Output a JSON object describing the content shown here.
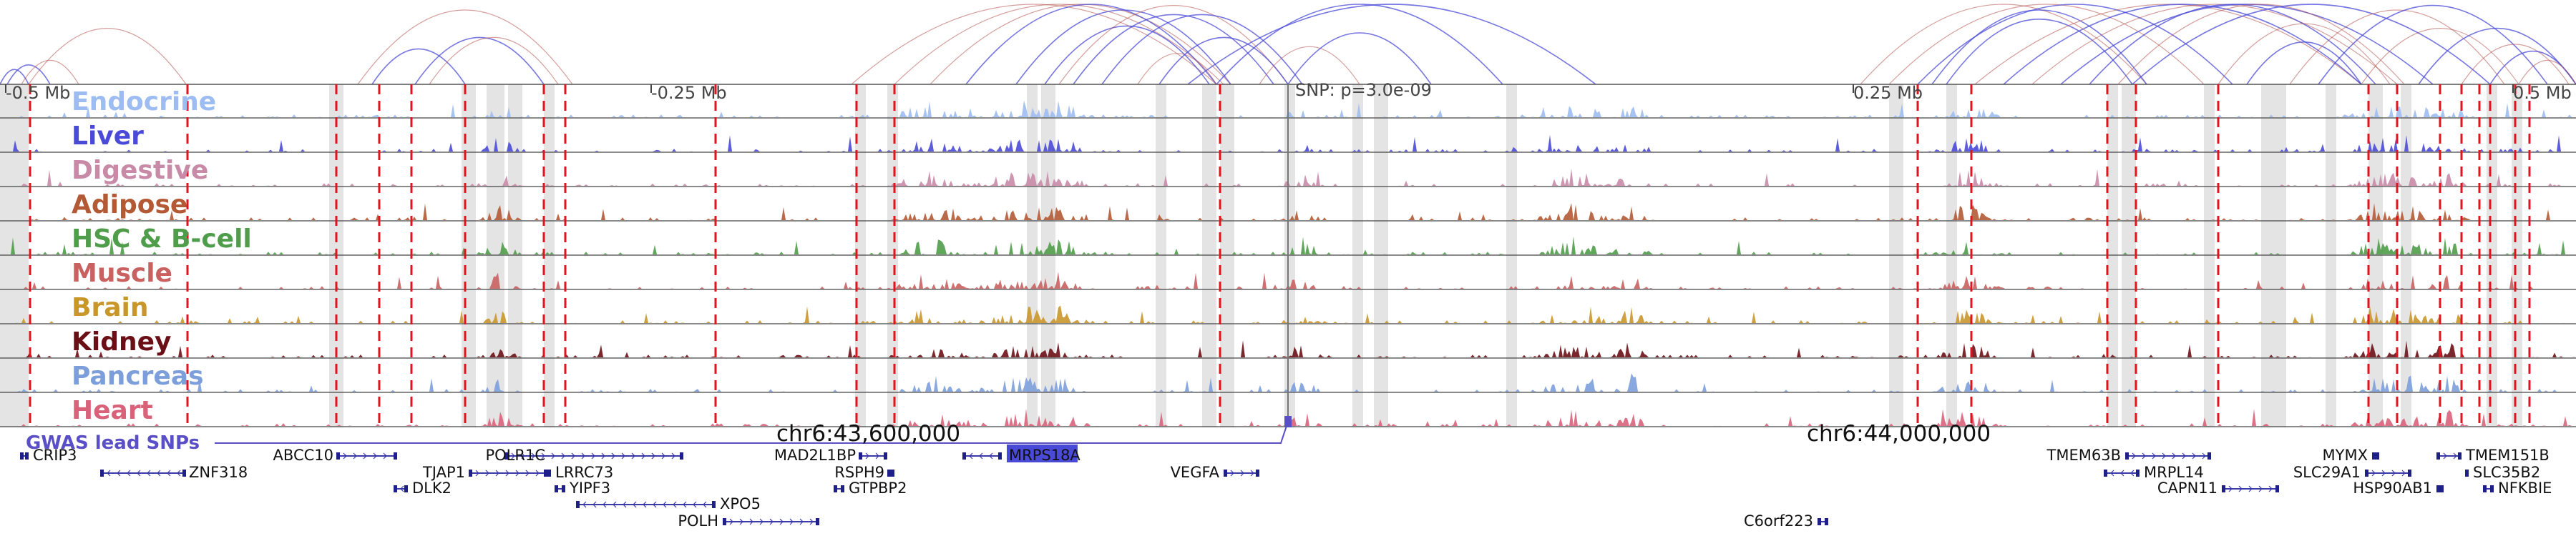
{
  "axis": {
    "ticks": [
      "-0.5 Mb",
      "-0.25 Mb",
      "0.25 Mb",
      "0.5 Mb"
    ],
    "snp_annotation": "SNP: p=3.0e-09"
  },
  "tracks": [
    {
      "name": "Endocrine",
      "color": "#9dbcf2"
    },
    {
      "name": "Liver",
      "color": "#4a4ad8"
    },
    {
      "name": "Digestive",
      "color": "#c98aa8"
    },
    {
      "name": "Adipose",
      "color": "#b35a35"
    },
    {
      "name": "HSC & B-cell",
      "color": "#4f9d4a"
    },
    {
      "name": "Muscle",
      "color": "#c8615f"
    },
    {
      "name": "Brain",
      "color": "#c9962a"
    },
    {
      "name": "Kidney",
      "color": "#6b0f16"
    },
    {
      "name": "Pancreas",
      "color": "#7c9fdb"
    },
    {
      "name": "Heart",
      "color": "#d9627a"
    }
  ],
  "gwas": {
    "label": "GWAS lead SNPs"
  },
  "chromosome": {
    "positions": [
      "chr6:43,600,000",
      "chr6:44,000,000"
    ]
  },
  "genes": [
    {
      "name": "CRIP3",
      "strand": "+"
    },
    {
      "name": "ZNF318",
      "strand": "-"
    },
    {
      "name": "ABCC10",
      "strand": "+"
    },
    {
      "name": "TJAP1",
      "strand": "+"
    },
    {
      "name": "DLK2",
      "strand": "-"
    },
    {
      "name": "POLR1C",
      "strand": "+"
    },
    {
      "name": "LRRC73",
      "strand": "-"
    },
    {
      "name": "YIPF3",
      "strand": "-"
    },
    {
      "name": "XPO5",
      "strand": "-"
    },
    {
      "name": "POLH",
      "strand": "+"
    },
    {
      "name": "MAD2L1BP",
      "strand": "+"
    },
    {
      "name": "RSPH9",
      "strand": "+"
    },
    {
      "name": "GTPBP2",
      "strand": "-"
    },
    {
      "name": "MRPS18A",
      "strand": "-",
      "highlight": true
    },
    {
      "name": "VEGFA",
      "strand": "+"
    },
    {
      "name": "C6orf223",
      "strand": "+"
    },
    {
      "name": "TMEM63B",
      "strand": "+"
    },
    {
      "name": "MRPL14",
      "strand": "-"
    },
    {
      "name": "CAPN11",
      "strand": "+"
    },
    {
      "name": "MYMX",
      "strand": "-"
    },
    {
      "name": "SLC29A1",
      "strand": "+"
    },
    {
      "name": "HSP90AB1",
      "strand": "+"
    },
    {
      "name": "TMEM151B",
      "strand": "+"
    },
    {
      "name": "SLC35B2",
      "strand": "-"
    },
    {
      "name": "NFKBIE",
      "strand": "-"
    }
  ],
  "colors": {
    "loop_blue": "#4a4ad8",
    "loop_red": "#b3504a",
    "gwas_marker": "#5a4fc6",
    "highlight_bg": "#4a4ad8",
    "dashed_line": "#e0141e"
  }
}
